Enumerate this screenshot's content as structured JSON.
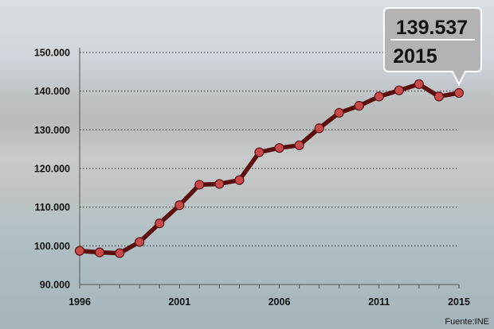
{
  "chart_data": {
    "type": "line",
    "x": [
      1996,
      1997,
      1998,
      1999,
      2000,
      2001,
      2002,
      2003,
      2004,
      2005,
      2006,
      2007,
      2008,
      2009,
      2010,
      2011,
      2012,
      2013,
      2014,
      2015
    ],
    "series": [
      {
        "values": [
          98700,
          98300,
          98100,
          101000,
          105800,
          110500,
          115800,
          116000,
          117000,
          124200,
          125300,
          126000,
          130400,
          134400,
          136200,
          138600,
          140200,
          141800,
          138600,
          139537
        ]
      }
    ],
    "x_ticks": [
      "1996",
      "2001",
      "2006",
      "2011",
      "2015"
    ],
    "y_ticks": [
      "90.000",
      "100.000",
      "110.000",
      "120.000",
      "130.000",
      "140.000",
      "150.000"
    ],
    "xlim": [
      1996,
      2015
    ],
    "ylim": [
      90000,
      150000
    ],
    "grid": "horizontal dotted",
    "line_color": "#5c0f0f",
    "marker_color": "#c84a4a"
  },
  "callout": {
    "value": "139.537",
    "year": "2015"
  },
  "source": "Fuente:INE"
}
